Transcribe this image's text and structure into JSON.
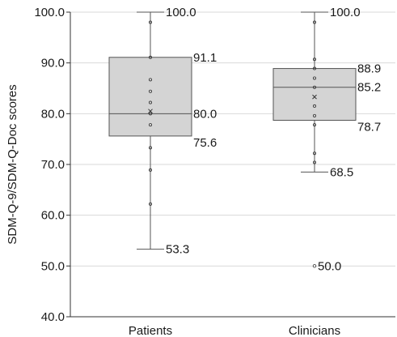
{
  "chart_data": {
    "type": "box",
    "ylabel": "SDM-Q-9/SDM-Q-Doc scores",
    "ylim": [
      40,
      100
    ],
    "yticks": [
      "40.0",
      "50.0",
      "60.0",
      "70.0",
      "80.0",
      "90.0",
      "100.0"
    ],
    "grid": true,
    "colors": {
      "box_fill": "#d4d4d4",
      "box_stroke": "#555555",
      "axis": "#333333",
      "grid": "#d9d9d9"
    },
    "series": [
      {
        "category": "Patients",
        "whisker_high": 100.0,
        "q3": 91.1,
        "median": 80.0,
        "q1": 75.6,
        "whisker_low": 53.3,
        "outliers": [],
        "mean": 80.5,
        "points": [
          98.0,
          91.1,
          86.7,
          84.4,
          82.2,
          80.0,
          77.8,
          73.3,
          68.9,
          62.2
        ],
        "labels": [
          {
            "text": "100.0",
            "value": 100.0,
            "side": "upper-whisker"
          },
          {
            "text": "91.1",
            "value": 91.1,
            "side": "q3"
          },
          {
            "text": "80.0",
            "value": 80.0,
            "side": "median"
          },
          {
            "text": "75.6",
            "value": 75.6,
            "side": "q1"
          },
          {
            "text": "53.3",
            "value": 53.3,
            "side": "lower-whisker"
          }
        ]
      },
      {
        "category": "Clinicians",
        "whisker_high": 100.0,
        "q3": 88.9,
        "median": 85.2,
        "q1": 78.7,
        "whisker_low": 68.5,
        "outliers": [
          50.0
        ],
        "mean": 83.3,
        "points": [
          98.0,
          90.7,
          88.9,
          87.0,
          85.2,
          81.5,
          79.6,
          77.8,
          72.2,
          70.4
        ],
        "labels": [
          {
            "text": "100.0",
            "value": 100.0,
            "side": "upper-whisker"
          },
          {
            "text": "88.9",
            "value": 88.9,
            "side": "q3"
          },
          {
            "text": "85.2",
            "value": 85.2,
            "side": "median"
          },
          {
            "text": "78.7",
            "value": 78.7,
            "side": "q1"
          },
          {
            "text": "68.5",
            "value": 68.5,
            "side": "lower-whisker"
          },
          {
            "text": "50.0",
            "value": 50.0,
            "side": "outlier"
          }
        ]
      }
    ]
  }
}
